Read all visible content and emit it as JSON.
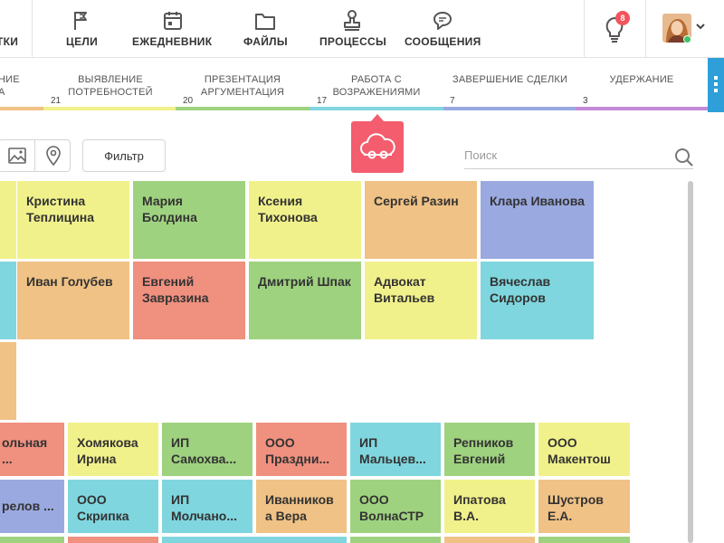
{
  "colors": {
    "yellow": "#f1f18b",
    "green": "#9fd27f",
    "orange": "#f0c285",
    "blue": "#9aa9e0",
    "cyan": "#80d6de",
    "salmon": "#f0907f",
    "accent": "#f35d6e",
    "badge": "#f2545b"
  },
  "nav": {
    "items": [
      {
        "label": "ТКИ",
        "icon": "partial-icon"
      },
      {
        "label": "ЦЕЛИ",
        "icon": "flag-icon"
      },
      {
        "label": "ЕЖЕДНЕВНИК",
        "icon": "calendar-icon"
      },
      {
        "label": "ФАЙЛЫ",
        "icon": "folder-icon"
      },
      {
        "label": "ПРОЦЕССЫ",
        "icon": "stamp-icon"
      },
      {
        "label": "СООБЩЕНИЯ",
        "icon": "chat-icon"
      }
    ],
    "notifications": {
      "icon": "lightbulb-icon",
      "count": "8"
    },
    "user": {
      "icon": "avatar",
      "status": "online"
    }
  },
  "stages": [
    {
      "name": "НИЕ\nА",
      "count": "",
      "color": "#f0c285"
    },
    {
      "name": "ВЫЯВЛЕНИЕ\nПОТРЕБНОСТЕЙ",
      "count": "21",
      "color": "#f1f18b"
    },
    {
      "name": "ПРЕЗЕНТАЦИЯ\nАРГУМЕНТАЦИЯ",
      "count": "20",
      "color": "#9fd27f"
    },
    {
      "name": "РАБОТА С\nВОЗРАЖЕНИЯМИ",
      "count": "17",
      "color": "#80d6de"
    },
    {
      "name": "ЗАВЕРШЕНИЕ СДЕЛКИ",
      "count": "7",
      "color": "#9aa9e0"
    },
    {
      "name": "УДЕРЖАНИЕ",
      "count": "3",
      "color": "#c289d6"
    }
  ],
  "selected_stage": {
    "icon": "cloud-objection-icon"
  },
  "toolbar": {
    "filter_label": "Фильтр",
    "search_placeholder": "Поиск",
    "view_icons": [
      "image-icon",
      "location-pin-icon"
    ]
  },
  "board": {
    "group_a": {
      "row1": [
        {
          "name": "",
          "color": "yellow"
        },
        {
          "name": "Кристина Теплицина",
          "color": "yellow"
        },
        {
          "name": "Мария Болдина",
          "color": "green"
        },
        {
          "name": "Ксения Тихонова",
          "color": "yellow"
        },
        {
          "name": "Сергей Разин",
          "color": "orange"
        },
        {
          "name": "Клара Иванова",
          "color": "blue"
        }
      ],
      "row2": [
        {
          "name": "",
          "color": "cyan"
        },
        {
          "name": "Иван Голубев",
          "color": "orange"
        },
        {
          "name": "Евгений Завразина",
          "color": "salmon"
        },
        {
          "name": "Дмитрий Шпак",
          "color": "green"
        },
        {
          "name": "Адвокат Витальев",
          "color": "yellow"
        },
        {
          "name": "Вячеслав Сидоров",
          "color": "cyan"
        }
      ],
      "row3": [
        {
          "name": "",
          "color": "orange"
        }
      ]
    },
    "group_b": {
      "row1": [
        {
          "name": "ольная\n...",
          "color": "salmon"
        },
        {
          "name": "Хомякова Ирина",
          "color": "yellow"
        },
        {
          "name": "ИП Самохва...",
          "color": "green"
        },
        {
          "name": "ООО Праздни...",
          "color": "salmon"
        },
        {
          "name": "ИП Мальцев...",
          "color": "cyan"
        },
        {
          "name": "Репников Евгений",
          "color": "green"
        },
        {
          "name": "ООО Макентош",
          "color": "yellow"
        }
      ],
      "row2": [
        {
          "name": "релов ...",
          "color": "blue"
        },
        {
          "name": "ООО Скрипка",
          "color": "cyan"
        },
        {
          "name": "ИП Молчано...",
          "color": "cyan"
        },
        {
          "name": "Иванников а Вера",
          "color": "orange"
        },
        {
          "name": "ООО ВолнаСТР",
          "color": "green"
        },
        {
          "name": "Ипатова В.А.",
          "color": "yellow"
        },
        {
          "name": "Шустров Е.А.",
          "color": "orange"
        }
      ],
      "row3": [
        {
          "name": "",
          "color": "green"
        },
        {
          "name": "",
          "color": "salmon"
        },
        {
          "name": "",
          "color": "cyan"
        },
        {
          "name": "",
          "color": "green"
        },
        {
          "name": "",
          "color": "orange"
        },
        {
          "name": "",
          "color": "green"
        }
      ]
    }
  }
}
